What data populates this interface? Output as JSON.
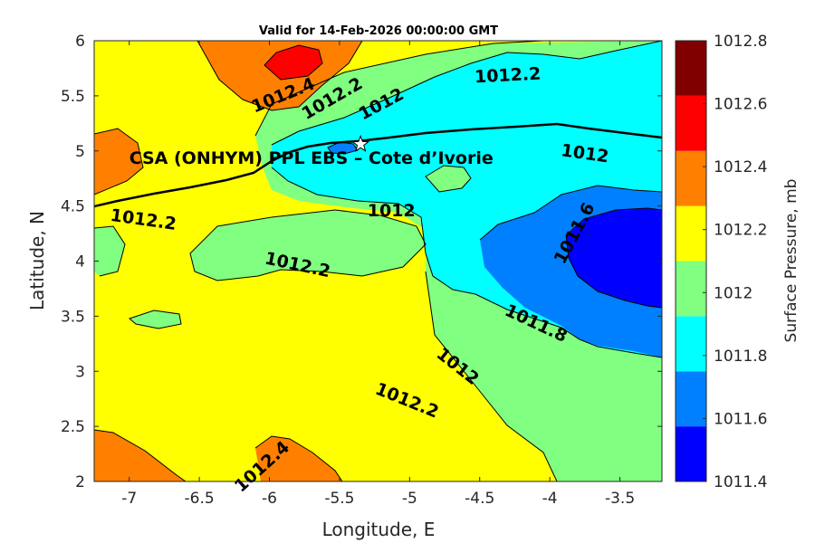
{
  "chart_data": {
    "type": "contour",
    "title": "Valid for 14-Feb-2026 00:00:00 GMT",
    "xlabel": "Longitude, E",
    "ylabel": "Latitude, N",
    "xlim": [
      -7.25,
      -3.2
    ],
    "ylim": [
      2,
      6
    ],
    "xticks": [
      -7,
      -6.5,
      -6,
      -5.5,
      -5,
      -4.5,
      -4,
      -3.5
    ],
    "xtick_labels": [
      "-7",
      "-6.5",
      "-6",
      "-5.5",
      "-5",
      "-4.5",
      "-4",
      "-3.5"
    ],
    "yticks": [
      2,
      2.5,
      3,
      3.5,
      4,
      4.5,
      5,
      5.5,
      6
    ],
    "ytick_labels": [
      "2",
      "2.5",
      "3",
      "3.5",
      "4",
      "4.5",
      "5",
      "5.5",
      "6"
    ],
    "grid": false,
    "colorbar": {
      "label": "Surface Pressure, mb",
      "levels": [
        1011.4,
        1011.6,
        1011.8,
        1012,
        1012.2,
        1012.4,
        1012.6,
        1012.8
      ],
      "tick_labels": [
        "1011.4",
        "1011.6",
        "1011.8",
        "1012",
        "1012.2",
        "1012.4",
        "1012.6",
        "1012.8"
      ],
      "colors": [
        "#0000ff",
        "#0080ff",
        "#00ffff",
        "#80ff80",
        "#ffff00",
        "#ff8000",
        "#ff0000",
        "#800000"
      ]
    },
    "contour_labels": [
      {
        "text": "1012.4",
        "lon": -5.9,
        "lat": 5.5,
        "angle": -22
      },
      {
        "text": "1012.2",
        "lon": -5.55,
        "lat": 5.47,
        "angle": -30
      },
      {
        "text": "1012",
        "lon": -5.2,
        "lat": 5.42,
        "angle": -28
      },
      {
        "text": "1012.2",
        "lon": -4.3,
        "lat": 5.68,
        "angle": -3
      },
      {
        "text": "1012",
        "lon": -3.75,
        "lat": 4.97,
        "angle": 8
      },
      {
        "text": "1012.2",
        "lon": -6.9,
        "lat": 4.37,
        "angle": 8
      },
      {
        "text": "1012",
        "lon": -5.13,
        "lat": 4.45,
        "angle": 0
      },
      {
        "text": "1011.6",
        "lon": -3.82,
        "lat": 4.25,
        "angle": -62
      },
      {
        "text": "1012.2",
        "lon": -5.8,
        "lat": 3.96,
        "angle": 12
      },
      {
        "text": "1011.8",
        "lon": -4.1,
        "lat": 3.43,
        "angle": 25
      },
      {
        "text": "1012",
        "lon": -4.66,
        "lat": 3.04,
        "angle": 38
      },
      {
        "text": "1012.2",
        "lon": -5.02,
        "lat": 2.73,
        "angle": 22
      },
      {
        "text": "1012.4",
        "lon": -6.05,
        "lat": 2.13,
        "angle": -42
      }
    ],
    "annotation": {
      "text": "CSA (ONHYM) PPL EBS  – Cote d’Ivorie",
      "lon": -7.0,
      "lat": 4.94
    },
    "marker": {
      "type": "star",
      "lon": -5.35,
      "lat": 5.06
    }
  }
}
